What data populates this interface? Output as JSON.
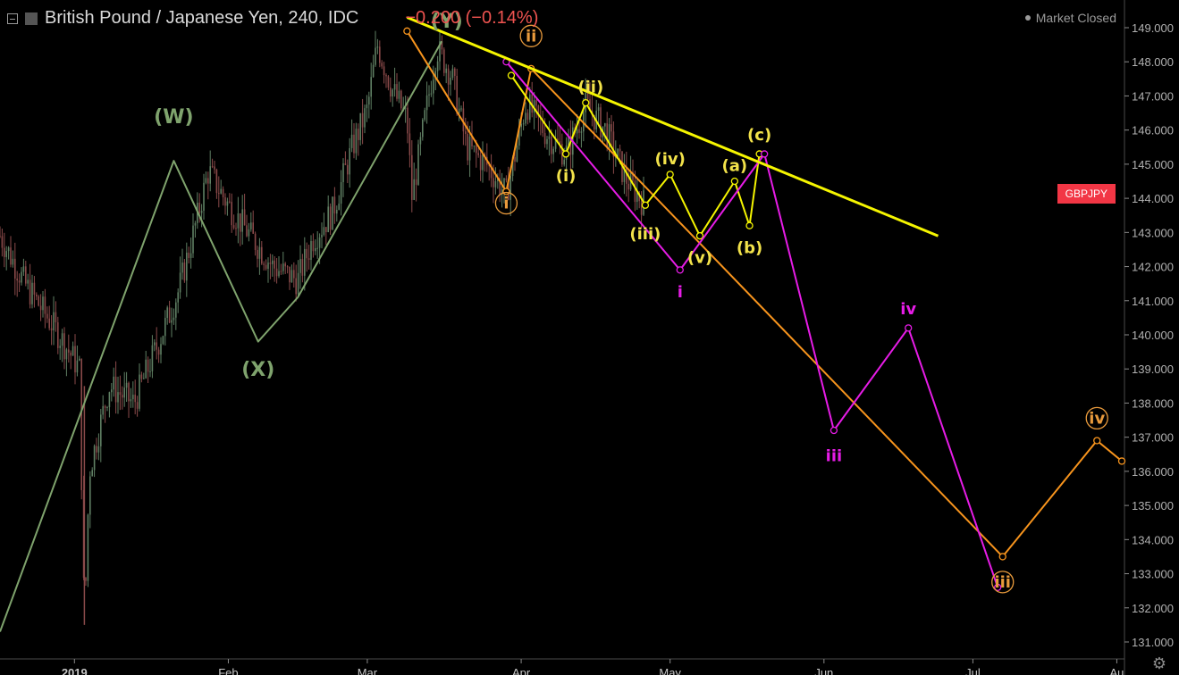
{
  "header": {
    "symbol": "British Pound / Japanese Yen, 240, IDC",
    "change": "−0.200 (−0.14%)",
    "market_status": "Market Closed"
  },
  "ticker_label": "GBPJPY",
  "colors": {
    "background": "#000000",
    "wave_green": "#7fa36d",
    "orange": "#f7941d",
    "yellow": "#f5f500",
    "magenta": "#e61ce6",
    "label_yellow": "#f2e24a",
    "label_orange": "#e89a3c",
    "price_tag": "#f23645",
    "candle_up": "#5f7f63",
    "candle_down": "#8a4a4a"
  },
  "chart_data": {
    "type": "line",
    "ylim": [
      131.0,
      149.0
    ],
    "y_ticks": [
      "149.000",
      "148.000",
      "147.000",
      "146.000",
      "145.000",
      "144.000",
      "143.000",
      "142.000",
      "141.000",
      "140.000",
      "139.000",
      "138.000",
      "137.000",
      "136.000",
      "135.000",
      "134.000",
      "133.000",
      "132.000",
      "131.000"
    ],
    "x_range": [
      "2018-12-17",
      "2019-07-31"
    ],
    "x_ticks": [
      {
        "date": "2019-01-01",
        "label": "2019",
        "bold": true
      },
      {
        "date": "2019-02-01",
        "label": "Feb"
      },
      {
        "date": "2019-03-01",
        "label": "Mar"
      },
      {
        "date": "2019-04-01",
        "label": "Apr"
      },
      {
        "date": "2019-05-01",
        "label": "May"
      },
      {
        "date": "2019-06-01",
        "label": "Jun"
      },
      {
        "date": "2019-07-01",
        "label": "Jul"
      },
      {
        "date": "2019-07-30",
        "label": "Au"
      }
    ],
    "price_path": [
      [
        "2018-12-17",
        142.9
      ],
      [
        "2018-12-22",
        141.5
      ],
      [
        "2018-12-28",
        140.2
      ],
      [
        "2019-01-02",
        139.0
      ],
      [
        "2019-01-03",
        131.5
      ],
      [
        "2019-01-04",
        136.0
      ],
      [
        "2019-01-08",
        138.5
      ],
      [
        "2019-01-13",
        138.0
      ],
      [
        "2019-01-18",
        139.8
      ],
      [
        "2019-01-22",
        141.3
      ],
      [
        "2019-01-25",
        143.0
      ],
      [
        "2019-01-28",
        144.8
      ],
      [
        "2019-02-01",
        143.8
      ],
      [
        "2019-02-05",
        143.0
      ],
      [
        "2019-02-10",
        142.0
      ],
      [
        "2019-02-15",
        141.6
      ],
      [
        "2019-02-18",
        142.8
      ],
      [
        "2019-02-22",
        143.6
      ],
      [
        "2019-02-26",
        145.5
      ],
      [
        "2019-03-01",
        146.6
      ],
      [
        "2019-03-03",
        148.5
      ],
      [
        "2019-03-06",
        147.2
      ],
      [
        "2019-03-09",
        146.3
      ],
      [
        "2019-03-10",
        144.0
      ],
      [
        "2019-03-13",
        146.7
      ],
      [
        "2019-03-15",
        148.4
      ],
      [
        "2019-03-18",
        147.6
      ],
      [
        "2019-03-21",
        145.5
      ],
      [
        "2019-03-25",
        145.0
      ],
      [
        "2019-03-29",
        144.1
      ],
      [
        "2019-04-02",
        146.8
      ],
      [
        "2019-04-06",
        145.9
      ],
      [
        "2019-04-10",
        145.3
      ],
      [
        "2019-04-14",
        146.7
      ],
      [
        "2019-04-18",
        146.0
      ],
      [
        "2019-04-22",
        144.6
      ],
      [
        "2019-04-26",
        143.8
      ]
    ],
    "series": [
      {
        "color": "#7fa36d",
        "points": [
          [
            "2018-12-17",
            131.3
          ],
          [
            "2019-01-21",
            145.1
          ],
          [
            "2019-02-07",
            139.8
          ],
          [
            "2019-02-15",
            141.1
          ],
          [
            "2019-03-16",
            148.6
          ]
        ]
      },
      {
        "color": "#f7941d",
        "markers": true,
        "points": [
          [
            "2019-03-09",
            148.9
          ],
          [
            "2019-03-29",
            144.2
          ],
          [
            "2019-04-03",
            147.8
          ],
          [
            "2019-07-07",
            133.5
          ],
          [
            "2019-07-26",
            136.9
          ],
          [
            "2019-07-31",
            136.3
          ]
        ]
      },
      {
        "color": "#f5f500",
        "markers": true,
        "points": [
          [
            "2019-03-30",
            147.6
          ],
          [
            "2019-04-10",
            145.3
          ],
          [
            "2019-04-14",
            146.8
          ],
          [
            "2019-04-26",
            143.8
          ],
          [
            "2019-05-01",
            144.7
          ],
          [
            "2019-05-07",
            142.9
          ]
        ]
      },
      {
        "color": "#f5f500",
        "markers": true,
        "points": [
          [
            "2019-05-07",
            142.9
          ],
          [
            "2019-05-14",
            144.5
          ],
          [
            "2019-05-17",
            143.2
          ],
          [
            "2019-05-19",
            145.3
          ]
        ]
      },
      {
        "color": "#e61ce6",
        "markers": true,
        "points": [
          [
            "2019-03-29",
            148.0
          ],
          [
            "2019-05-03",
            141.9
          ],
          [
            "2019-05-20",
            145.3
          ],
          [
            "2019-06-03",
            137.2
          ],
          [
            "2019-06-18",
            140.2
          ],
          [
            "2019-07-06",
            132.6
          ]
        ]
      },
      {
        "color": "#f5f500",
        "width": 3,
        "points": [
          [
            "2019-03-09",
            149.3
          ],
          [
            "2019-06-24",
            142.9
          ]
        ]
      }
    ],
    "annotations": [
      {
        "text": "(W)",
        "date": "2019-01-21",
        "price": 146.2,
        "color": "#7fa36d",
        "size": 22
      },
      {
        "text": "(X)",
        "date": "2019-02-07",
        "price": 138.8,
        "color": "#7fa36d",
        "size": 22
      },
      {
        "text": "(Y)",
        "date": "2019-03-17",
        "price": 149.0,
        "color": "#7fa36d",
        "size": 22
      },
      {
        "text": "i",
        "date": "2019-03-29",
        "price": 143.7,
        "color": "#e89a3c",
        "size": 18,
        "circle": true
      },
      {
        "text": "ii",
        "date": "2019-04-03",
        "price": 148.6,
        "color": "#e89a3c",
        "size": 18,
        "circle": true
      },
      {
        "text": "iii",
        "date": "2019-07-07",
        "price": 132.6,
        "color": "#e89a3c",
        "size": 18,
        "circle": true
      },
      {
        "text": "iv",
        "date": "2019-07-26",
        "price": 137.4,
        "color": "#e89a3c",
        "size": 18,
        "circle": true
      },
      {
        "text": "(i)",
        "date": "2019-04-10",
        "price": 144.5,
        "color": "#f2e24a",
        "size": 18
      },
      {
        "text": "(ii)",
        "date": "2019-04-15",
        "price": 147.1,
        "color": "#f2e24a",
        "size": 18
      },
      {
        "text": "(iii)",
        "date": "2019-04-26",
        "price": 142.8,
        "color": "#f2e24a",
        "size": 18
      },
      {
        "text": "(iv)",
        "date": "2019-05-01",
        "price": 145.0,
        "color": "#f2e24a",
        "size": 18
      },
      {
        "text": "(v)",
        "date": "2019-05-07",
        "price": 142.1,
        "color": "#f2e24a",
        "size": 18
      },
      {
        "text": "(a)",
        "date": "2019-05-14",
        "price": 144.8,
        "color": "#f2e24a",
        "size": 18
      },
      {
        "text": "(b)",
        "date": "2019-05-17",
        "price": 142.4,
        "color": "#f2e24a",
        "size": 18
      },
      {
        "text": "(c)",
        "date": "2019-05-19",
        "price": 145.7,
        "color": "#f2e24a",
        "size": 18
      },
      {
        "text": "i",
        "date": "2019-05-03",
        "price": 141.1,
        "color": "#e61ce6",
        "size": 18
      },
      {
        "text": "iii",
        "date": "2019-06-03",
        "price": 136.3,
        "color": "#e61ce6",
        "size": 18
      },
      {
        "text": "iv",
        "date": "2019-06-18",
        "price": 140.6,
        "color": "#e61ce6",
        "size": 18
      }
    ]
  }
}
